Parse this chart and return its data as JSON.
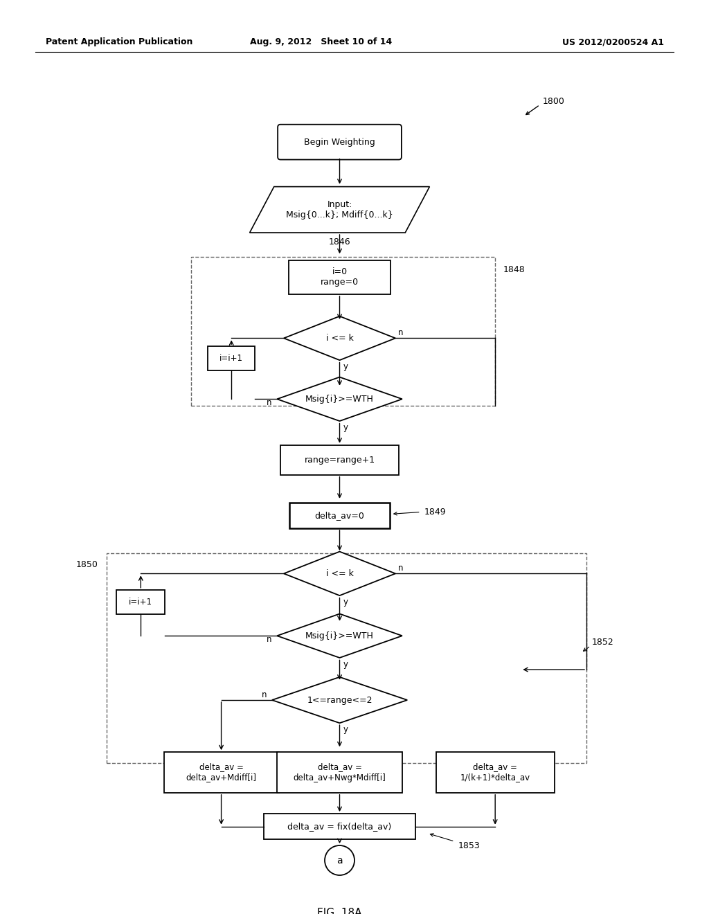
{
  "title_left": "Patent Application Publication",
  "title_mid": "Aug. 9, 2012   Sheet 10 of 14",
  "title_right": "US 2012/0200524 A1",
  "fig_label": "FIG. 18A",
  "ref_1800": "1800",
  "ref_1846": "1846",
  "ref_1848": "1848",
  "ref_1849": "1849",
  "ref_1850": "1850",
  "ref_1852": "1852",
  "ref_1853": "1853",
  "node_begin": "Begin Weighting",
  "node_input_line1": "Input:",
  "node_input_line2": "Msig{0...k}; Mdiff{0...k}",
  "node_init1": "i=0\nrange=0",
  "node_ick1": "i <= k",
  "node_ii1": "i=i+1",
  "node_msig1": "Msig{i}>=WTH",
  "node_range_inc": "range=range+1",
  "node_delta_av0": "delta_av=0",
  "node_ick2": "i <= k",
  "node_ii2": "i=i+1",
  "node_msig2": "Msig{i}>=WTH",
  "node_range_chk": "1<=range<=2",
  "node_box_n_l1": "delta_av =",
  "node_box_n_l2": "delta_av+Mdiff[i]",
  "node_box_y_l1": "delta_av =",
  "node_box_y_l2": "delta_av+Nwg*Mdiff[i]",
  "node_box_r_l1": "delta_av =",
  "node_box_r_l2": "1/(k+1)*delta_av",
  "node_fix": "delta_av = fix(delta_av)",
  "node_circle": "a",
  "bg_color": "#ffffff",
  "line_color": "#000000",
  "dash_color": "#666666"
}
